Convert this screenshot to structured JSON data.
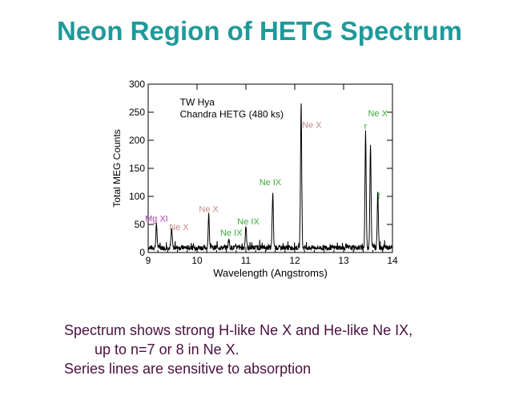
{
  "slide": {
    "title": "Neon Region of HETG Spectrum",
    "caption": [
      "Spectrum shows strong  H-like Ne X  and He-like Ne IX,",
      "up to n=7 or 8 in Ne X.",
      "Series lines are sensitive to absorption"
    ]
  },
  "colors": {
    "title": "#1f9a9a",
    "caption": "#4a1040",
    "ne_x": "#c98a8a",
    "ne_ix": "#3aaa3a",
    "mg_xi": "#b040b0"
  },
  "chart_data": {
    "type": "line",
    "title": "",
    "xlabel": "Wavelength (Angstroms)",
    "ylabel": "Total MEG Counts",
    "xlim": [
      9,
      14
    ],
    "ylim": [
      0,
      300
    ],
    "x_ticks": [
      9,
      10,
      11,
      12,
      13,
      14
    ],
    "y_ticks": [
      0,
      50,
      100,
      150,
      200,
      250,
      300
    ],
    "grid": false,
    "inset_text": [
      "TW Hya",
      "Chandra HETG (480 ks)"
    ],
    "peaks": [
      {
        "x": 9.17,
        "y": 42
      },
      {
        "x": 9.48,
        "y": 34
      },
      {
        "x": 10.24,
        "y": 55
      },
      {
        "x": 10.65,
        "y": 15
      },
      {
        "x": 11.0,
        "y": 40
      },
      {
        "x": 11.55,
        "y": 95
      },
      {
        "x": 12.13,
        "y": 255
      },
      {
        "x": 13.45,
        "y": 205
      },
      {
        "x": 13.55,
        "y": 185
      },
      {
        "x": 13.7,
        "y": 95
      }
    ],
    "series": [
      {
        "values_note": ""
      }
    ],
    "annotations": [
      {
        "text": "Mg XI",
        "x": 9.17,
        "y": 55,
        "color": "#b040b0"
      },
      {
        "text": "Ne X",
        "x": 9.63,
        "y": 40,
        "color": "#c98a8a"
      },
      {
        "text": "Ne X",
        "x": 10.24,
        "y": 72,
        "color": "#c98a8a"
      },
      {
        "text": "Ne IX",
        "x": 11.05,
        "y": 50,
        "color": "#3aaa3a"
      },
      {
        "text": "Ne IX",
        "x": 10.7,
        "y": 30,
        "color": "#3aaa3a"
      },
      {
        "text": "Ne IX",
        "x": 11.5,
        "y": 120,
        "color": "#3aaa3a"
      },
      {
        "text": "Ne X",
        "x": 12.35,
        "y": 222,
        "color": "#c98a8a"
      },
      {
        "text": "Ne X",
        "x": 13.7,
        "y": 243,
        "color": "#3aaa3a"
      },
      {
        "text": "r",
        "x": 13.45,
        "y": 220,
        "color": "#3aaa3a"
      },
      {
        "text": "f",
        "x": 13.72,
        "y": 95,
        "color": "#3aaa3a"
      }
    ]
  }
}
